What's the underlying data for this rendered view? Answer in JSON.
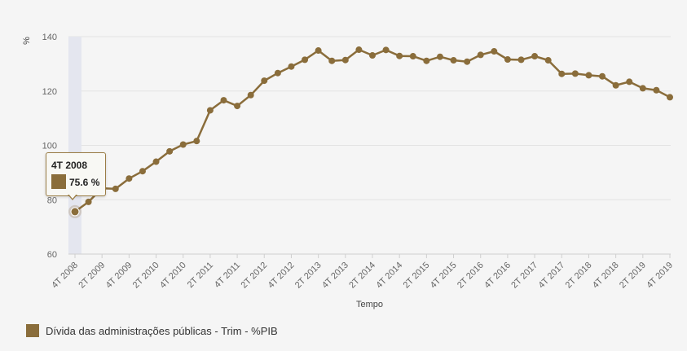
{
  "chart_data": {
    "type": "line",
    "xlabel": "Tempo",
    "ylabel": "%",
    "ylim": [
      60,
      140
    ],
    "yticks": [
      60,
      80,
      100,
      120,
      140
    ],
    "grid": true,
    "series": [
      {
        "name": "Dívida das administrações públicas - Trim - %PIB",
        "color": "#8a6d3b",
        "x": [
          "4T 2008",
          "1T 2009",
          "2T 2009",
          "3T 2009",
          "4T 2009",
          "1T 2010",
          "2T 2010",
          "3T 2010",
          "4T 2010",
          "1T 2011",
          "2T 2011",
          "3T 2011",
          "4T 2011",
          "1T 2012",
          "2T 2012",
          "3T 2012",
          "4T 2012",
          "1T 2013",
          "2T 2013",
          "3T 2013",
          "4T 2013",
          "1T 2014",
          "2T 2014",
          "3T 2014",
          "4T 2014",
          "1T 2015",
          "2T 2015",
          "3T 2015",
          "4T 2015",
          "1T 2016",
          "2T 2016",
          "3T 2016",
          "4T 2016",
          "1T 2017",
          "2T 2017",
          "3T 2017",
          "4T 2017",
          "1T 2018",
          "2T 2018",
          "3T 2018",
          "4T 2018",
          "1T 2019",
          "2T 2019",
          "3T 2019",
          "4T 2019"
        ],
        "values": [
          75.6,
          79.2,
          84.2,
          84.0,
          87.8,
          90.5,
          94.0,
          97.8,
          100.3,
          101.6,
          112.9,
          116.6,
          114.5,
          118.5,
          123.8,
          126.6,
          129.0,
          131.5,
          134.9,
          131.1,
          131.4,
          135.2,
          133.1,
          135.1,
          132.9,
          132.8,
          131.1,
          132.6,
          131.3,
          130.8,
          133.3,
          134.6,
          131.6,
          131.5,
          132.8,
          131.3,
          126.3,
          126.4,
          125.8,
          125.4,
          122.1,
          123.4,
          121.0,
          120.3,
          117.7
        ]
      }
    ],
    "xtick_labels": [
      "4T 2008",
      "2T 2009",
      "4T 2009",
      "2T 2010",
      "4T 2010",
      "2T 2011",
      "4T 2011",
      "2T 2012",
      "4T 2012",
      "2T 2013",
      "4T 2013",
      "2T 2014",
      "4T 2014",
      "2T 2015",
      "4T 2015",
      "2T 2016",
      "4T 2016",
      "2T 2017",
      "4T 2017",
      "2T 2018",
      "4T 2018",
      "2T 2019",
      "4T 2019"
    ],
    "highlight_index": 0,
    "tooltip": {
      "title": "4T 2008",
      "value_text": "75.6 %"
    }
  },
  "legend": {
    "label": "Dívida das administrações públicas - Trim - %PIB",
    "color": "#8a6d3b"
  }
}
